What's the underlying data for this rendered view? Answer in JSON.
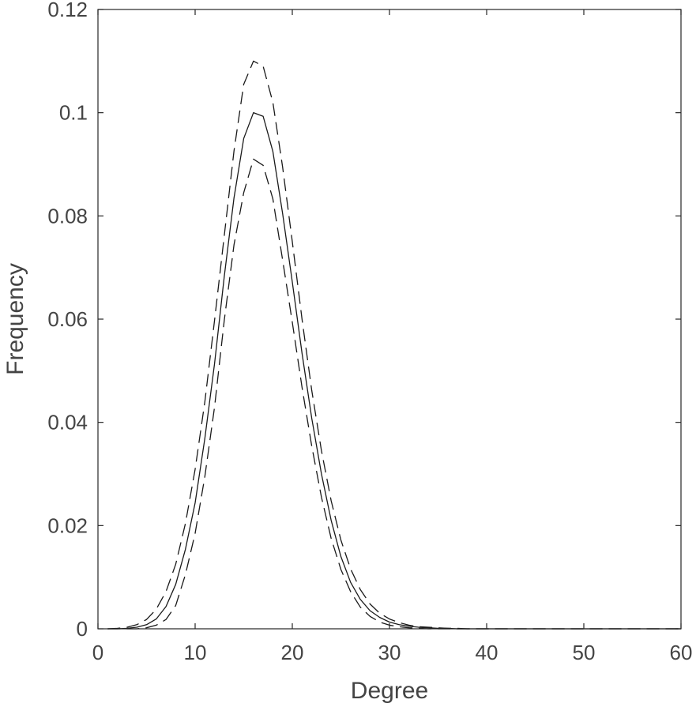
{
  "chart_data": {
    "type": "line",
    "xlabel": "Degree",
    "ylabel": "Frequency",
    "xlim": [
      0,
      60
    ],
    "ylim": [
      0,
      0.12
    ],
    "xticks": [
      "0",
      "10",
      "20",
      "30",
      "40",
      "50",
      "60"
    ],
    "yticks": [
      "0",
      "0.02",
      "0.04",
      "0.06",
      "0.08",
      "0.1",
      "0.12"
    ],
    "grid": false,
    "box": true,
    "x": [
      1,
      2,
      3,
      4,
      5,
      6,
      7,
      8,
      9,
      10,
      11,
      12,
      13,
      14,
      15,
      16,
      17,
      18,
      19,
      20,
      21,
      22,
      23,
      24,
      25,
      26,
      27,
      28,
      29,
      30,
      31,
      32,
      33,
      34,
      35,
      36,
      37,
      38,
      39,
      40,
      45,
      50,
      55,
      60
    ],
    "series": [
      {
        "style": "solid",
        "values": [
          0,
          0,
          0.0001,
          0.0003,
          0.0008,
          0.0019,
          0.0043,
          0.0086,
          0.0154,
          0.0244,
          0.0369,
          0.0514,
          0.0683,
          0.0835,
          0.095,
          0.1,
          0.0993,
          0.0925,
          0.0805,
          0.0672,
          0.0534,
          0.0408,
          0.03,
          0.021,
          0.014,
          0.009,
          0.0057,
          0.0035,
          0.0022,
          0.0013,
          0.0008,
          0.0005,
          0.0003,
          0.0002,
          0.0001,
          0.0001,
          0,
          0,
          0,
          0,
          0,
          0,
          0,
          0
        ]
      },
      {
        "style": "dashed",
        "values": [
          0,
          0.0001,
          0.0003,
          0.0008,
          0.0018,
          0.0038,
          0.0072,
          0.0125,
          0.0204,
          0.0309,
          0.044,
          0.0598,
          0.0762,
          0.0926,
          0.1055,
          0.11,
          0.109,
          0.102,
          0.0895,
          0.075,
          0.06,
          0.0462,
          0.0345,
          0.0248,
          0.0172,
          0.0116,
          0.0076,
          0.0048,
          0.003,
          0.0019,
          0.0012,
          0.0007,
          0.0004,
          0.0003,
          0.0002,
          0.0001,
          0.0001,
          0,
          0,
          0,
          0,
          0,
          0,
          0
        ]
      },
      {
        "style": "dashed",
        "values": [
          0,
          0,
          0,
          0,
          0.0002,
          0.0007,
          0.0018,
          0.0045,
          0.0105,
          0.0185,
          0.0295,
          0.043,
          0.0598,
          0.0744,
          0.0845,
          0.091,
          0.0898,
          0.0833,
          0.0715,
          0.0594,
          0.0468,
          0.0354,
          0.0255,
          0.0175,
          0.0115,
          0.0072,
          0.0042,
          0.0024,
          0.0013,
          0.0007,
          0.0004,
          0.0002,
          0.0001,
          0,
          0,
          0,
          0,
          0,
          0,
          0,
          0,
          0,
          0,
          0
        ]
      }
    ]
  }
}
